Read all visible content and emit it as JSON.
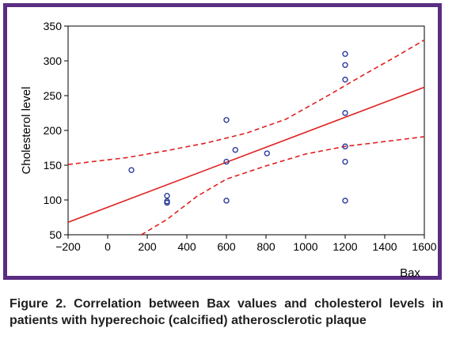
{
  "caption": "Figure 2. Correlation between Bax values and cholesterol levels in patients with hyperechoic (calcified) atherosclerotic plaque",
  "colors": {
    "frame": "#5a2d82",
    "points": "#2b3c9a",
    "fit": "#e02020"
  },
  "chart_data": {
    "type": "scatter",
    "xlabel": "Bax",
    "ylabel": "Cholesterol level",
    "xlim": [
      -200,
      1600
    ],
    "ylim": [
      50,
      350
    ],
    "xticks": [
      -200,
      0,
      200,
      400,
      600,
      800,
      1000,
      1200,
      1400,
      1600
    ],
    "yticks": [
      50,
      100,
      150,
      200,
      250,
      300,
      350
    ],
    "xtick_labels": [
      "−200",
      "0",
      "200",
      "400",
      "600",
      "800",
      "1000",
      "1200",
      "1400",
      "1600"
    ],
    "ytick_labels": [
      "50",
      "100",
      "150",
      "200",
      "250",
      "300",
      "350"
    ],
    "points": [
      {
        "x": 120,
        "y": 143
      },
      {
        "x": 300,
        "y": 106
      },
      {
        "x": 300,
        "y": 98
      },
      {
        "x": 300,
        "y": 96
      },
      {
        "x": 600,
        "y": 215
      },
      {
        "x": 600,
        "y": 155
      },
      {
        "x": 600,
        "y": 99
      },
      {
        "x": 645,
        "y": 172
      },
      {
        "x": 805,
        "y": 167
      },
      {
        "x": 1200,
        "y": 310
      },
      {
        "x": 1200,
        "y": 294
      },
      {
        "x": 1200,
        "y": 273
      },
      {
        "x": 1200,
        "y": 225
      },
      {
        "x": 1200,
        "y": 177
      },
      {
        "x": 1200,
        "y": 155
      },
      {
        "x": 1200,
        "y": 99
      }
    ],
    "fit_line": [
      {
        "x": -200,
        "y": 68
      },
      {
        "x": 1600,
        "y": 262
      }
    ],
    "upper_ci": [
      {
        "x": -200,
        "y": 151
      },
      {
        "x": 100,
        "y": 161
      },
      {
        "x": 300,
        "y": 171
      },
      {
        "x": 500,
        "y": 182
      },
      {
        "x": 700,
        "y": 196
      },
      {
        "x": 900,
        "y": 216
      },
      {
        "x": 1100,
        "y": 248
      },
      {
        "x": 1300,
        "y": 281
      },
      {
        "x": 1450,
        "y": 305
      },
      {
        "x": 1600,
        "y": 330
      }
    ],
    "lower_ci": [
      {
        "x": 170,
        "y": 50
      },
      {
        "x": 300,
        "y": 72
      },
      {
        "x": 450,
        "y": 105
      },
      {
        "x": 600,
        "y": 130
      },
      {
        "x": 800,
        "y": 149
      },
      {
        "x": 1000,
        "y": 166
      },
      {
        "x": 1200,
        "y": 177
      },
      {
        "x": 1400,
        "y": 184
      },
      {
        "x": 1600,
        "y": 191
      }
    ]
  }
}
